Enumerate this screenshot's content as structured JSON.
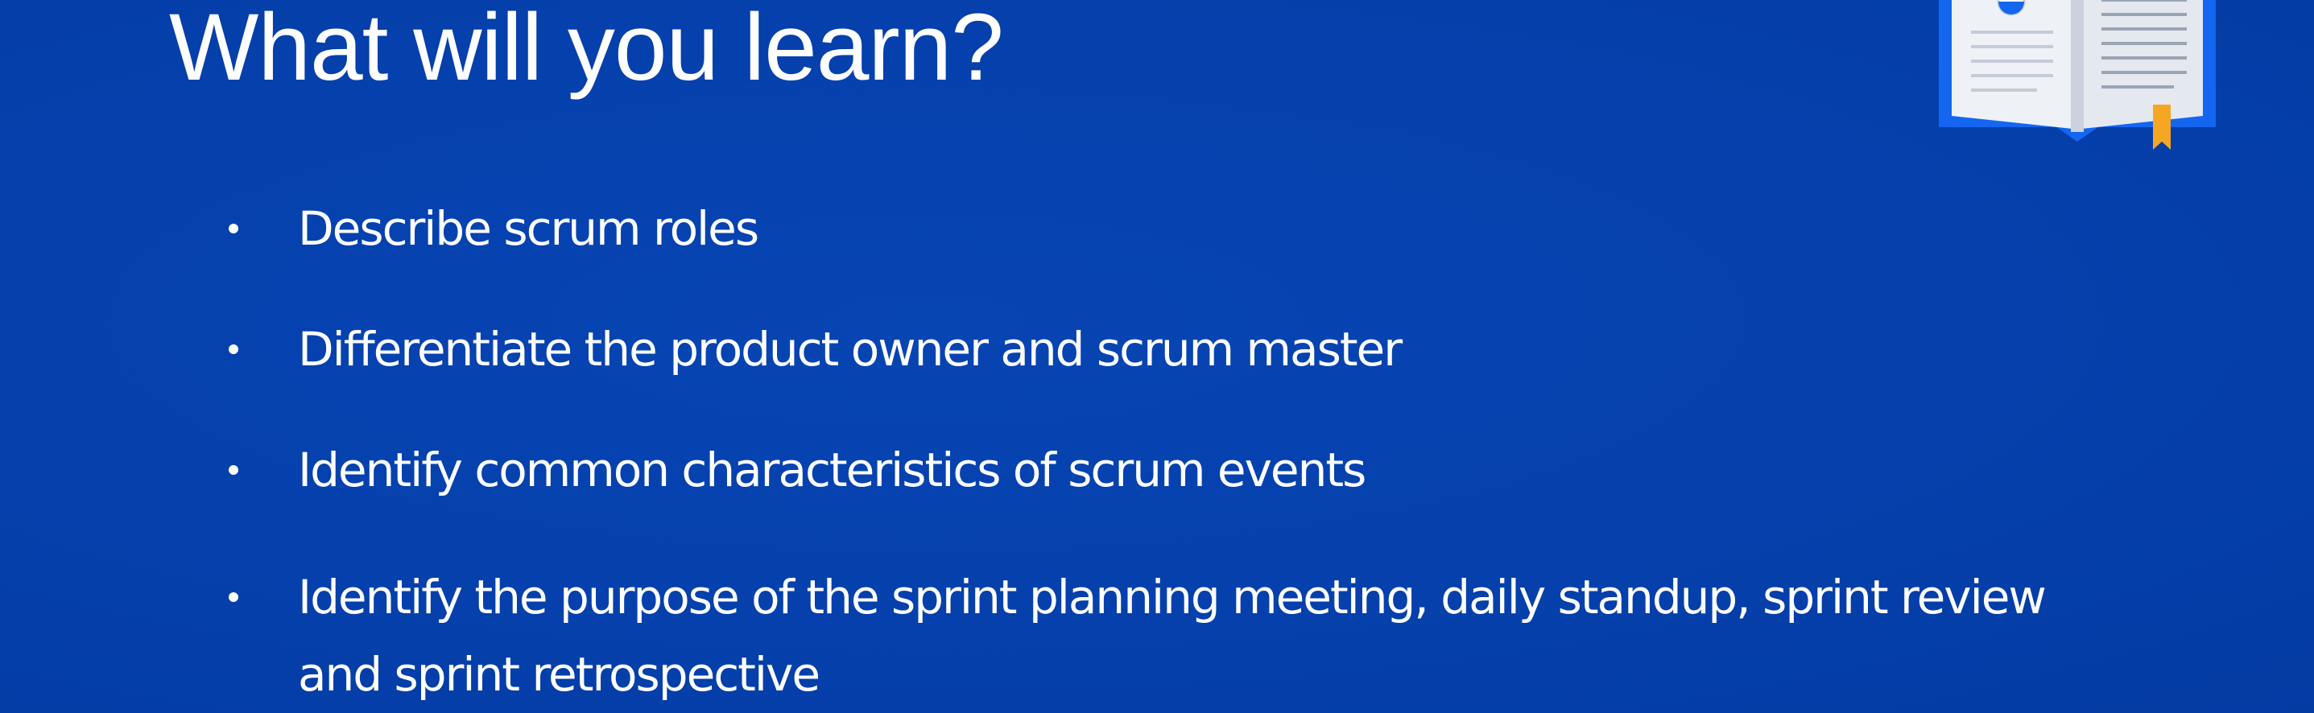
{
  "slide": {
    "title": "What will you learn?",
    "bullets": [
      "Describe scrum roles",
      "Differentiate the product owner and scrum master",
      "Identify common characteristics of scrum events",
      "Identify the purpose of the sprint planning meeting, daily standup, sprint review and sprint retrospective"
    ],
    "illustration_icon": "open-book-icon"
  },
  "colors": {
    "background": "#0540ac",
    "text": "#ffffff",
    "book_border": "#1466f0",
    "book_page": "#eef2f7",
    "bookmark": "#f5a623"
  }
}
